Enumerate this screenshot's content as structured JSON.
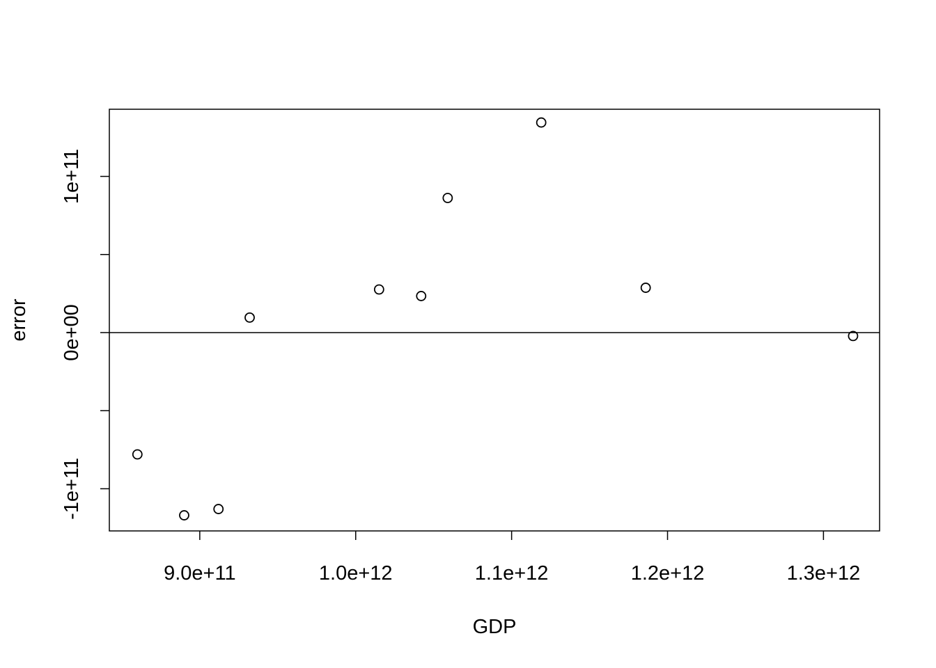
{
  "chart_data": {
    "type": "scatter",
    "title": "",
    "xlabel": "GDP",
    "ylabel": "error",
    "xlim": [
      842000000000,
      1336000000000
    ],
    "ylim": [
      -127000000000,
      143000000000
    ],
    "grid": false,
    "legend": "none",
    "reference_line": {
      "y": 0
    },
    "x_ticks": [
      {
        "value": 900000000000,
        "label": "9.0e+11"
      },
      {
        "value": 1000000000000,
        "label": "1.0e+12"
      },
      {
        "value": 1100000000000,
        "label": "1.1e+12"
      },
      {
        "value": 1200000000000,
        "label": "1.2e+12"
      },
      {
        "value": 1300000000000,
        "label": "1.3e+12"
      }
    ],
    "y_ticks": [
      {
        "value": -100000000000,
        "label": "-1e+11"
      },
      {
        "value": -50000000000,
        "label": ""
      },
      {
        "value": 0,
        "label": "0e+00"
      },
      {
        "value": 50000000000,
        "label": ""
      },
      {
        "value": 100000000000,
        "label": "1e+11"
      }
    ],
    "series": [
      {
        "x": [
          860000000000,
          890000000000,
          912000000000,
          932000000000,
          1015000000000,
          1042000000000,
          1059000000000,
          1119000000000,
          1186000000000,
          1319000000000
        ],
        "y": [
          -78000000000,
          -117000000000,
          -113000000000,
          9600000000,
          27600000000,
          23400000000,
          86200000000,
          134500000000,
          28700000000,
          -2200000000
        ]
      }
    ]
  }
}
